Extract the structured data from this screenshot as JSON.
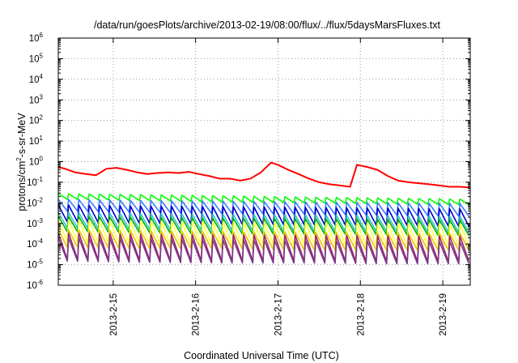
{
  "chart_data": {
    "type": "line",
    "title": "/data/run/goesPlots/archive/2013-02-19/08:00/flux/../flux/5daysMarsFluxes.txt",
    "xlabel": "Coordinated Universal Time (UTC)",
    "ylabel": "protons/cm²-s-sr-MeV",
    "ylabel_parts": {
      "pre": "protons/cm",
      "sup": "2",
      "post": "-s-sr-MeV"
    },
    "y_scale": "log",
    "ylim": [
      1e-06,
      1000000.0
    ],
    "y_ticks": [
      {
        "base": "10",
        "exp": "-6",
        "value": 1e-06
      },
      {
        "base": "10",
        "exp": "-5",
        "value": 1e-05
      },
      {
        "base": "10",
        "exp": "-4",
        "value": 0.0001
      },
      {
        "base": "10",
        "exp": "-3",
        "value": 0.001
      },
      {
        "base": "10",
        "exp": "-2",
        "value": 0.01
      },
      {
        "base": "10",
        "exp": "-1",
        "value": 0.1
      },
      {
        "base": "10",
        "exp": "0",
        "value": 1
      },
      {
        "base": "10",
        "exp": "1",
        "value": 10
      },
      {
        "base": "10",
        "exp": "2",
        "value": 100
      },
      {
        "base": "10",
        "exp": "3",
        "value": 1000
      },
      {
        "base": "10",
        "exp": "4",
        "value": 10000
      },
      {
        "base": "10",
        "exp": "5",
        "value": 100000
      },
      {
        "base": "10",
        "exp": "6",
        "value": 1000000
      }
    ],
    "xlim": [
      "2013-02-14T08:00",
      "2013-02-19T08:00"
    ],
    "x_ticks": [
      "2013-2-15",
      "2013-2-16",
      "2013-2-17",
      "2013-2-18",
      "2013-2-19"
    ],
    "grid": true,
    "legend": "none",
    "sawtooth_cycle_hours": 3,
    "series": [
      {
        "color": "#ff0000",
        "x": [
          "2013-02-14T08:00",
          "2013-02-14T10:00",
          "2013-02-14T13:00",
          "2013-02-14T16:00",
          "2013-02-14T19:00",
          "2013-02-14T22:00",
          "2013-02-15T01:00",
          "2013-02-15T04:00",
          "2013-02-15T07:00",
          "2013-02-15T10:00",
          "2013-02-15T13:00",
          "2013-02-15T16:00",
          "2013-02-15T19:00",
          "2013-02-15T22:00",
          "2013-02-16T01:00",
          "2013-02-16T04:00",
          "2013-02-16T07:00",
          "2013-02-16T10:00",
          "2013-02-16T13:00",
          "2013-02-16T16:00",
          "2013-02-16T19:00",
          "2013-02-16T22:00",
          "2013-02-17T00:00",
          "2013-02-17T03:00",
          "2013-02-17T06:00",
          "2013-02-17T09:00",
          "2013-02-17T12:00",
          "2013-02-17T15:00",
          "2013-02-17T18:00",
          "2013-02-17T21:00",
          "2013-02-17T23:00",
          "2013-02-18T02:00",
          "2013-02-18T05:00",
          "2013-02-18T08:00",
          "2013-02-18T11:00",
          "2013-02-18T14:00",
          "2013-02-18T17:00",
          "2013-02-18T20:00",
          "2013-02-18T23:00",
          "2013-02-19T02:00",
          "2013-02-19T05:00",
          "2013-02-19T08:00"
        ],
        "y": [
          0.55,
          0.45,
          0.3,
          0.25,
          0.22,
          0.45,
          0.5,
          0.4,
          0.3,
          0.25,
          0.28,
          0.3,
          0.28,
          0.32,
          0.25,
          0.2,
          0.15,
          0.15,
          0.12,
          0.15,
          0.3,
          0.9,
          0.7,
          0.4,
          0.25,
          0.15,
          0.1,
          0.08,
          0.07,
          0.06,
          0.7,
          0.55,
          0.4,
          0.2,
          0.12,
          0.1,
          0.09,
          0.08,
          0.07,
          0.06,
          0.06,
          0.055
        ]
      },
      {
        "color": "#00ff00",
        "x": [
          "2013-02-14T08:00",
          "2013-02-15T08:00",
          "2013-02-16T08:00",
          "2013-02-17T08:00",
          "2013-02-18T08:00",
          "2013-02-19T08:00"
        ],
        "y_high": [
          0.028,
          0.025,
          0.022,
          0.019,
          0.017,
          0.015
        ],
        "y_low": [
          0.015,
          0.013,
          0.011,
          0.01,
          0.009,
          0.008
        ]
      },
      {
        "color": "#3a7bff",
        "x": [
          "2013-02-14T08:00",
          "2013-02-15T08:00",
          "2013-02-16T08:00",
          "2013-02-17T08:00",
          "2013-02-18T08:00",
          "2013-02-19T08:00"
        ],
        "y_high": [
          0.015,
          0.013,
          0.012,
          0.011,
          0.01,
          0.009
        ],
        "y_low": [
          0.004,
          0.0035,
          0.003,
          0.0028,
          0.0025,
          0.0022
        ]
      },
      {
        "color": "#0000c8",
        "x": [
          "2013-02-14T08:00",
          "2013-02-15T08:00",
          "2013-02-16T08:00",
          "2013-02-17T08:00",
          "2013-02-18T08:00",
          "2013-02-19T08:00"
        ],
        "y_high": [
          0.008,
          0.007,
          0.0065,
          0.006,
          0.0055,
          0.005
        ],
        "y_low": [
          0.0012,
          0.001,
          0.0009,
          0.00085,
          0.0008,
          0.0007
        ]
      },
      {
        "color": "#2ec8c8",
        "x": [
          "2013-02-14T08:00",
          "2013-02-15T08:00",
          "2013-02-16T08:00",
          "2013-02-17T08:00",
          "2013-02-18T08:00",
          "2013-02-19T08:00"
        ],
        "y_high": [
          0.0035,
          0.003,
          0.0028,
          0.0026,
          0.0024,
          0.0022
        ],
        "y_low": [
          0.0006,
          0.0005,
          0.00045,
          0.0004,
          0.0004,
          0.00035
        ]
      },
      {
        "color": "#00b000",
        "x": [
          "2013-02-14T08:00",
          "2013-02-15T08:00",
          "2013-02-16T08:00",
          "2013-02-17T08:00",
          "2013-02-18T08:00",
          "2013-02-19T08:00"
        ],
        "y_high": [
          0.0022,
          0.002,
          0.0018,
          0.0017,
          0.0016,
          0.0015
        ],
        "y_low": [
          0.0004,
          0.00035,
          0.0003,
          0.0003,
          0.00028,
          0.00025
        ]
      },
      {
        "color": "#ffff40",
        "x": [
          "2013-02-14T08:00",
          "2013-02-15T08:00",
          "2013-02-16T08:00",
          "2013-02-17T08:00",
          "2013-02-18T08:00",
          "2013-02-19T08:00"
        ],
        "y_high": [
          0.0015,
          0.0013,
          0.0012,
          0.0011,
          0.001,
          0.0009
        ],
        "y_low": [
          0.00012,
          0.0001,
          9e-05,
          9e-05,
          8e-05,
          8e-05
        ]
      },
      {
        "color": "#e6c800",
        "x": [
          "2013-02-14T08:00",
          "2013-02-15T08:00",
          "2013-02-16T08:00",
          "2013-02-17T08:00",
          "2013-02-18T08:00",
          "2013-02-19T08:00"
        ],
        "y_high": [
          0.0005,
          0.00045,
          0.0004,
          0.00038,
          0.00035,
          0.00033
        ],
        "y_low": [
          7e-05,
          6e-05,
          6e-05,
          5e-05,
          5e-05,
          5e-05
        ]
      },
      {
        "color": "#a02070",
        "x": [
          "2013-02-14T08:00",
          "2013-02-15T08:00",
          "2013-02-16T08:00",
          "2013-02-17T08:00",
          "2013-02-18T08:00",
          "2013-02-19T08:00"
        ],
        "y_high": [
          0.00035,
          0.0003,
          0.00028,
          0.00027,
          0.00025,
          0.00024
        ],
        "y_low": [
          1.8e-05,
          1.6e-05,
          1.5e-05,
          1.5e-05,
          1.4e-05,
          1.4e-05
        ]
      },
      {
        "color": "#7a3a8a",
        "x": [
          "2013-02-14T08:00",
          "2013-02-15T08:00",
          "2013-02-16T08:00",
          "2013-02-17T08:00",
          "2013-02-18T08:00",
          "2013-02-19T08:00"
        ],
        "y_high": [
          0.0002,
          0.00018,
          0.00016,
          0.00015,
          0.00014,
          0.00013
        ],
        "y_low": [
          1.5e-05,
          1.3e-05,
          1.2e-05,
          1.2e-05,
          1.1e-05,
          1.1e-05
        ]
      }
    ]
  }
}
